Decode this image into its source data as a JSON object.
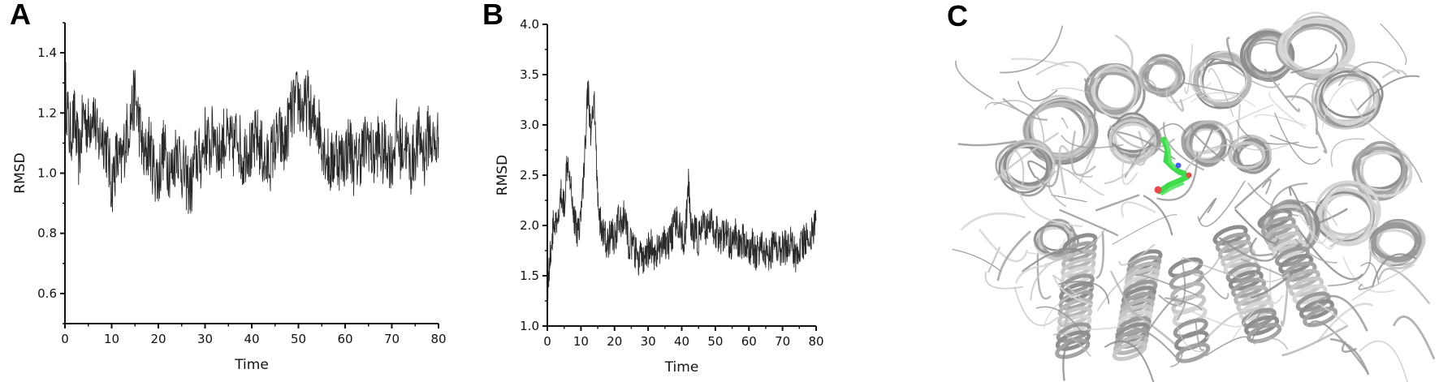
{
  "figure": {
    "panels": [
      {
        "letter": "A"
      },
      {
        "letter": "B"
      },
      {
        "letter": "C",
        "description": "Superimposed protein cartoon snapshots (grey) with bound ligand (green, red, blue atoms)"
      }
    ]
  },
  "chart_data": [
    {
      "panel": "A",
      "type": "line",
      "title": "",
      "xlabel": "Time",
      "ylabel": "RMSD",
      "xlim": [
        0,
        80
      ],
      "ylim": [
        0.5,
        1.5
      ],
      "xticks": [
        0,
        10,
        20,
        30,
        40,
        50,
        60,
        70,
        80
      ],
      "yticks": [
        0.6,
        0.8,
        1.0,
        1.2,
        1.4
      ],
      "ytick_labels": [
        "0.6",
        "0.8",
        "1.0",
        "1.2",
        "1.4"
      ],
      "grid": false,
      "series": [
        {
          "name": "RMSD",
          "color": "#000000",
          "x": [
            0,
            1,
            2,
            3,
            4,
            5,
            6,
            7,
            8,
            9,
            10,
            11,
            12,
            13,
            14,
            15,
            16,
            17,
            18,
            19,
            20,
            21,
            22,
            23,
            24,
            25,
            26,
            27,
            28,
            29,
            30,
            31,
            32,
            33,
            34,
            35,
            36,
            37,
            38,
            39,
            40,
            41,
            42,
            43,
            44,
            45,
            46,
            47,
            48,
            49,
            50,
            51,
            52,
            53,
            54,
            55,
            56,
            57,
            58,
            59,
            60,
            61,
            62,
            63,
            64,
            65,
            66,
            67,
            68,
            69,
            70,
            71,
            72,
            73,
            74,
            75,
            76,
            77,
            78,
            79,
            80
          ],
          "values": [
            1.3,
            1.12,
            1.18,
            1.05,
            1.2,
            1.15,
            1.22,
            1.1,
            1.14,
            1.08,
            0.96,
            1.05,
            1.02,
            1.12,
            1.18,
            1.26,
            1.15,
            1.04,
            1.1,
            1.02,
            0.98,
            1.08,
            1.04,
            1.0,
            1.1,
            1.02,
            0.98,
            0.95,
            1.06,
            1.04,
            1.12,
            1.08,
            1.15,
            1.06,
            1.12,
            1.1,
            1.08,
            1.14,
            1.04,
            1.1,
            1.06,
            1.12,
            1.08,
            1.02,
            1.05,
            1.1,
            1.12,
            1.08,
            1.18,
            1.22,
            1.25,
            1.2,
            1.24,
            1.16,
            1.18,
            1.12,
            1.06,
            1.02,
            1.08,
            1.04,
            1.06,
            1.1,
            1.02,
            1.06,
            1.08,
            1.12,
            1.04,
            1.1,
            1.06,
            1.08,
            1.04,
            1.14,
            1.08,
            1.1,
            1.02,
            1.08,
            1.12,
            1.06,
            1.14,
            1.08,
            1.12
          ]
        }
      ]
    },
    {
      "panel": "B",
      "type": "line",
      "title": "",
      "xlabel": "Time",
      "ylabel": "RMSD",
      "xlim": [
        0,
        80
      ],
      "ylim": [
        1.0,
        4.0
      ],
      "xticks": [
        0,
        10,
        20,
        30,
        40,
        50,
        60,
        70,
        80
      ],
      "yticks": [
        1.0,
        1.5,
        2.0,
        2.5,
        3.0,
        3.5,
        4.0
      ],
      "ytick_labels": [
        "1.0",
        "1.5",
        "2.0",
        "2.5",
        "3.0",
        "3.5",
        "4.0"
      ],
      "grid": false,
      "series": [
        {
          "name": "RMSD",
          "color": "#000000",
          "x": [
            0,
            1,
            2,
            3,
            4,
            5,
            6,
            7,
            8,
            9,
            10,
            11,
            12,
            13,
            14,
            15,
            16,
            17,
            18,
            19,
            20,
            21,
            22,
            23,
            24,
            25,
            26,
            27,
            28,
            29,
            30,
            31,
            32,
            33,
            34,
            35,
            36,
            37,
            38,
            39,
            40,
            41,
            42,
            43,
            44,
            45,
            46,
            47,
            48,
            49,
            50,
            51,
            52,
            53,
            54,
            55,
            56,
            57,
            58,
            59,
            60,
            61,
            62,
            63,
            64,
            65,
            66,
            67,
            68,
            69,
            70,
            71,
            72,
            73,
            74,
            75,
            76,
            77,
            78,
            79,
            80
          ],
          "values": [
            1.35,
            1.75,
            2.05,
            1.95,
            2.3,
            2.2,
            2.7,
            2.45,
            2.05,
            1.95,
            2.1,
            2.6,
            3.4,
            2.9,
            3.2,
            2.3,
            1.95,
            1.9,
            1.8,
            1.95,
            1.85,
            2.05,
            2.0,
            2.1,
            1.85,
            1.8,
            1.75,
            1.65,
            1.7,
            1.6,
            1.75,
            1.8,
            1.7,
            1.78,
            1.72,
            1.85,
            1.8,
            1.9,
            2.0,
            2.05,
            1.9,
            1.85,
            2.4,
            1.9,
            1.95,
            1.85,
            2.0,
            1.95,
            2.05,
            2.0,
            1.95,
            1.9,
            1.88,
            1.92,
            1.85,
            1.8,
            1.9,
            1.78,
            1.85,
            1.82,
            1.75,
            1.8,
            1.72,
            1.78,
            1.8,
            1.75,
            1.7,
            1.78,
            1.82,
            1.75,
            1.8,
            1.78,
            1.85,
            1.8,
            1.7,
            1.78,
            1.82,
            1.88,
            1.85,
            1.95,
            2.05
          ]
        }
      ]
    }
  ]
}
